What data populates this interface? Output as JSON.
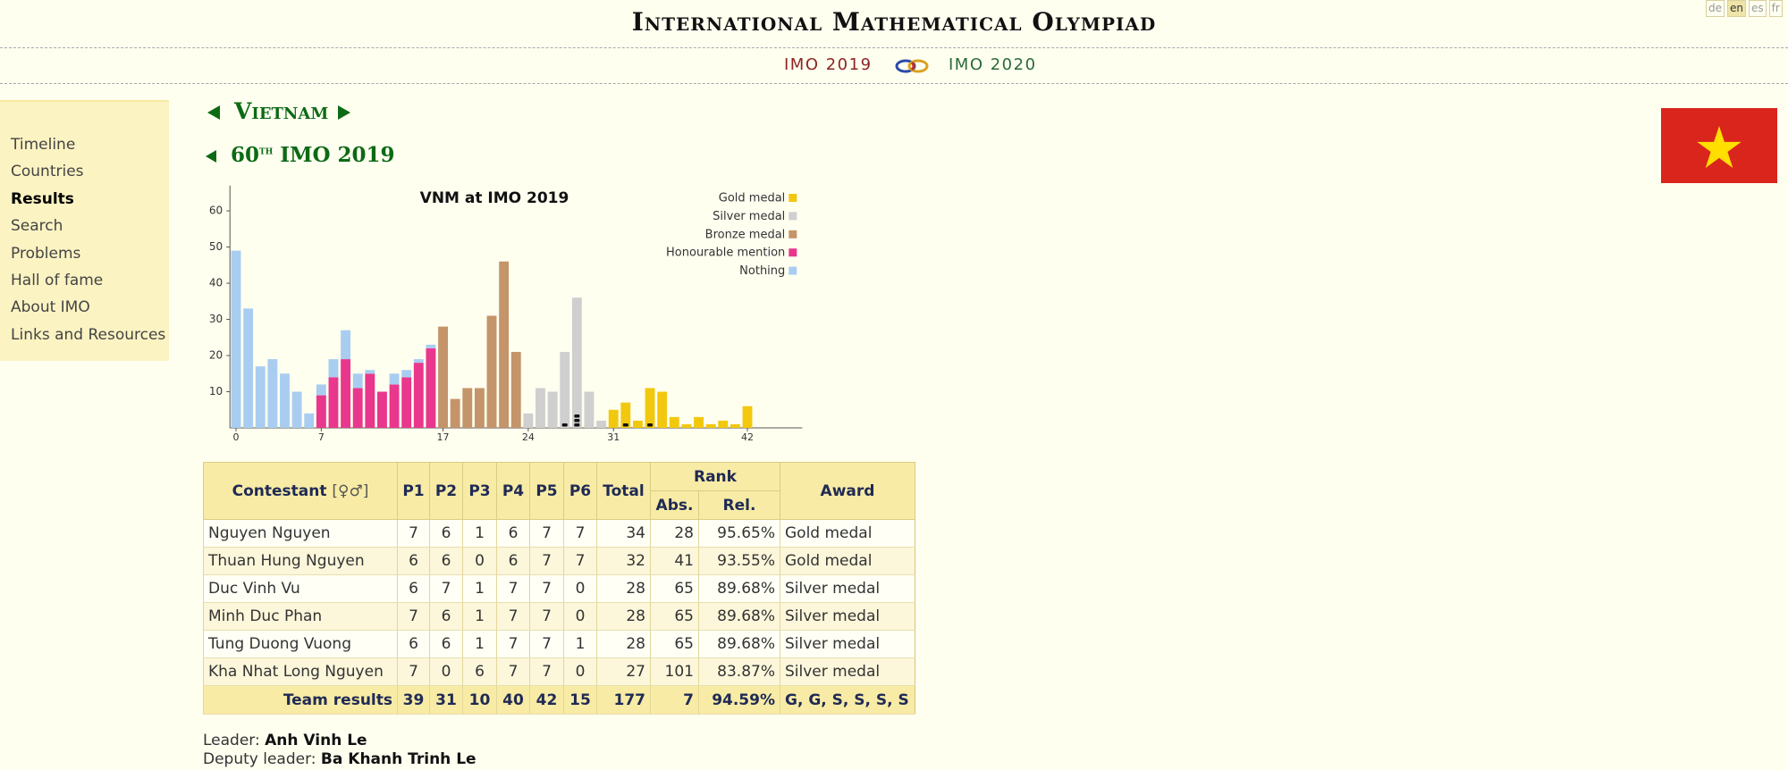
{
  "header": {
    "title": "International Mathematical Olympiad",
    "languages": [
      "de",
      "en",
      "es",
      "fr"
    ],
    "current_language": 1,
    "prev_link": "IMO 2019",
    "next_link": "IMO 2020"
  },
  "sidebar": {
    "items": [
      "Timeline",
      "Countries",
      "Results",
      "Search",
      "Problems",
      "Hall of fame",
      "About IMO",
      "Links and Resources"
    ],
    "active": 2
  },
  "page": {
    "country": "Vietnam",
    "ordinal": "60",
    "ordinal_suffix": "th",
    "event": "IMO 2019"
  },
  "chart_data": {
    "type": "bar",
    "title": "VNM at IMO 2019",
    "categories": [
      0,
      1,
      2,
      3,
      4,
      5,
      6,
      7,
      8,
      9,
      10,
      11,
      12,
      13,
      14,
      15,
      16,
      17,
      18,
      19,
      20,
      21,
      22,
      23,
      24,
      25,
      26,
      27,
      28,
      29,
      30,
      31,
      32,
      33,
      34,
      35,
      36,
      37,
      38,
      39,
      40,
      41,
      42
    ],
    "series": [
      {
        "name": "Gold medal",
        "color": "#f2c80f",
        "values": [
          null,
          null,
          null,
          null,
          null,
          null,
          null,
          null,
          null,
          null,
          null,
          null,
          null,
          null,
          null,
          null,
          null,
          null,
          null,
          null,
          null,
          null,
          null,
          null,
          null,
          null,
          null,
          null,
          null,
          null,
          null,
          5,
          7,
          2,
          11,
          10,
          3,
          1,
          3,
          1,
          2,
          1,
          6
        ]
      },
      {
        "name": "Silver medal",
        "color": "#cfcfcf",
        "values": [
          null,
          null,
          null,
          null,
          null,
          null,
          null,
          null,
          null,
          null,
          null,
          null,
          null,
          null,
          null,
          null,
          null,
          null,
          null,
          null,
          null,
          null,
          null,
          null,
          4,
          11,
          10,
          21,
          36,
          10,
          2,
          null,
          null,
          null,
          null,
          null,
          null,
          null,
          null,
          null,
          null,
          null,
          null
        ]
      },
      {
        "name": "Bronze medal",
        "color": "#c4946a",
        "values": [
          null,
          null,
          null,
          null,
          null,
          null,
          null,
          null,
          null,
          null,
          null,
          null,
          null,
          null,
          null,
          null,
          null,
          28,
          8,
          11,
          11,
          31,
          46,
          21,
          null,
          null,
          null,
          null,
          null,
          null,
          null,
          null,
          null,
          null,
          null,
          null,
          null,
          null,
          null,
          null,
          null,
          null,
          null
        ]
      },
      {
        "name": "Honourable mention",
        "color": "#e8378c",
        "values": [
          null,
          null,
          null,
          null,
          null,
          null,
          null,
          9,
          14,
          19,
          11,
          15,
          10,
          12,
          14,
          18,
          22,
          null,
          null,
          null,
          null,
          null,
          null,
          null,
          null,
          null,
          null,
          null,
          null,
          null,
          null,
          null,
          null,
          null,
          null,
          null,
          null,
          null,
          null,
          null,
          null,
          null,
          null
        ]
      },
      {
        "name": "Nothing",
        "color": "#a9cdf0",
        "values": [
          49,
          33,
          17,
          19,
          15,
          10,
          4,
          3,
          5,
          8,
          4,
          1,
          null,
          3,
          2,
          1,
          1,
          null,
          null,
          null,
          null,
          null,
          null,
          null,
          null,
          null,
          null,
          null,
          null,
          null,
          null,
          null,
          null,
          null,
          null,
          null,
          null,
          null,
          null,
          null,
          null,
          null,
          null
        ]
      }
    ],
    "xlim": [
      -0.5,
      46.5
    ],
    "xticks": [
      0,
      7,
      17,
      24,
      31,
      42
    ],
    "ylim": [
      0,
      67
    ],
    "yticks": [
      10,
      20,
      30,
      40,
      50,
      60
    ],
    "stacked": true,
    "legend": "top-right",
    "grid": false
  },
  "table": {
    "headers": {
      "contestant": "Contestant",
      "gender_toggle": "[♀♂]",
      "problems": [
        "P1",
        "P2",
        "P3",
        "P4",
        "P5",
        "P6"
      ],
      "total": "Total",
      "rank": "Rank",
      "rank_abs": "Abs.",
      "rank_rel": "Rel.",
      "award": "Award"
    },
    "rows": [
      {
        "name": "Nguyen Nguyen",
        "scores": [
          7,
          6,
          1,
          6,
          7,
          7
        ],
        "total": 34,
        "abs": 28,
        "rel": "95.65%",
        "award": "Gold medal"
      },
      {
        "name": "Thuan Hung Nguyen",
        "scores": [
          6,
          6,
          0,
          6,
          7,
          7
        ],
        "total": 32,
        "abs": 41,
        "rel": "93.55%",
        "award": "Gold medal"
      },
      {
        "name": "Duc Vinh Vu",
        "scores": [
          6,
          7,
          1,
          7,
          7,
          0
        ],
        "total": 28,
        "abs": 65,
        "rel": "89.68%",
        "award": "Silver medal"
      },
      {
        "name": "Minh Duc Phan",
        "scores": [
          7,
          6,
          1,
          7,
          7,
          0
        ],
        "total": 28,
        "abs": 65,
        "rel": "89.68%",
        "award": "Silver medal"
      },
      {
        "name": "Tung Duong Vuong",
        "scores": [
          6,
          6,
          1,
          7,
          7,
          1
        ],
        "total": 28,
        "abs": 65,
        "rel": "89.68%",
        "award": "Silver medal"
      },
      {
        "name": "Kha Nhat Long Nguyen",
        "scores": [
          7,
          0,
          6,
          7,
          7,
          0
        ],
        "total": 27,
        "abs": 101,
        "rel": "83.87%",
        "award": "Silver medal"
      }
    ],
    "team": {
      "label": "Team results",
      "scores": [
        39,
        31,
        10,
        40,
        42,
        15
      ],
      "total": 177,
      "abs": 7,
      "rel": "94.59%",
      "award": "G, G, S, S, S, S"
    }
  },
  "leaders": {
    "leader_label": "Leader:",
    "leader": "Anh Vinh Le",
    "deputy_label": "Deputy leader:",
    "deputy": "Ba Khanh Trinh Le"
  }
}
